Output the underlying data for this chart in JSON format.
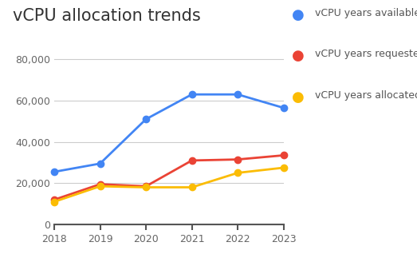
{
  "title": "vCPU allocation trends",
  "years": [
    2018,
    2019,
    2020,
    2021,
    2022,
    2023
  ],
  "series": [
    {
      "label": "vCPU years available",
      "color": "#4285F4",
      "values": [
        25500,
        29500,
        51000,
        63000,
        63000,
        56500
      ]
    },
    {
      "label": "vCPU years requested",
      "color": "#EA4335",
      "values": [
        12000,
        19500,
        18500,
        31000,
        31500,
        33500
      ]
    },
    {
      "label": "vCPU years allocated",
      "color": "#FBBC04",
      "values": [
        11000,
        18500,
        18000,
        18000,
        25000,
        27500
      ]
    }
  ],
  "ylim": [
    0,
    85000
  ],
  "yticks": [
    0,
    20000,
    40000,
    60000,
    80000
  ],
  "ytick_labels": [
    "0",
    "20,000",
    "40,000",
    "60,000",
    "80,000"
  ],
  "background_color": "#ffffff",
  "grid_color": "#cccccc",
  "title_fontsize": 15,
  "legend_fontsize": 9,
  "axis_fontsize": 9,
  "marker_size": 6,
  "line_width": 2.0
}
